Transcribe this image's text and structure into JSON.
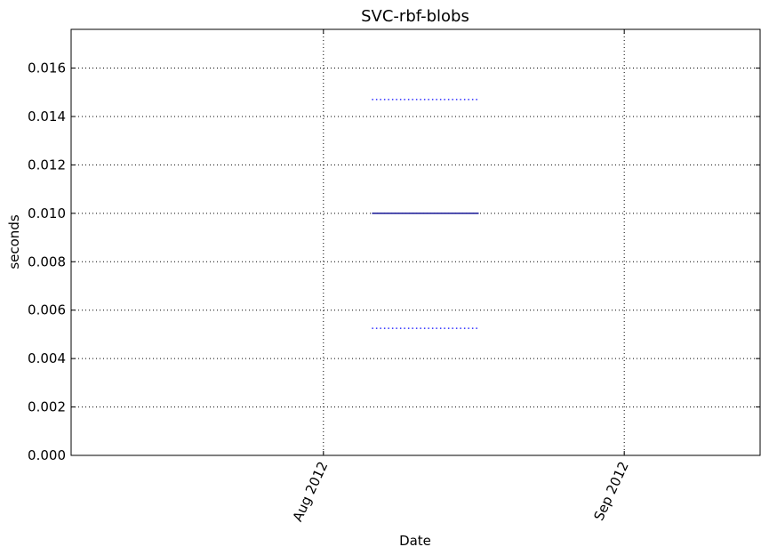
{
  "chart_data": {
    "type": "line",
    "title": "SVC-rbf-blobs",
    "xlabel": "Date",
    "ylabel": "seconds",
    "x_axis": {
      "kind": "date",
      "range": [
        "2012-07-06",
        "2012-09-15"
      ],
      "ticks": [
        {
          "value": "2012-08-01",
          "label": "Aug 2012"
        },
        {
          "value": "2012-09-01",
          "label": "Sep 2012"
        }
      ]
    },
    "ylim": [
      0,
      0.0176
    ],
    "yticks": [
      "0.000",
      "0.002",
      "0.004",
      "0.006",
      "0.008",
      "0.010",
      "0.012",
      "0.014",
      "0.016"
    ],
    "grid": true,
    "series": [
      {
        "style": "solid",
        "color": "#00008b",
        "points": [
          {
            "x": "2012-08-06",
            "y": 0.01
          },
          {
            "x": "2012-08-17",
            "y": 0.01
          }
        ]
      },
      {
        "style": "dotted",
        "color": "#0000ff",
        "points": [
          {
            "x": "2012-08-06",
            "y": 0.0147
          },
          {
            "x": "2012-08-17",
            "y": 0.0147
          }
        ]
      },
      {
        "style": "dotted",
        "color": "#0000ff",
        "points": [
          {
            "x": "2012-08-06",
            "y": 0.00525
          },
          {
            "x": "2012-08-17",
            "y": 0.00525
          }
        ]
      }
    ]
  }
}
